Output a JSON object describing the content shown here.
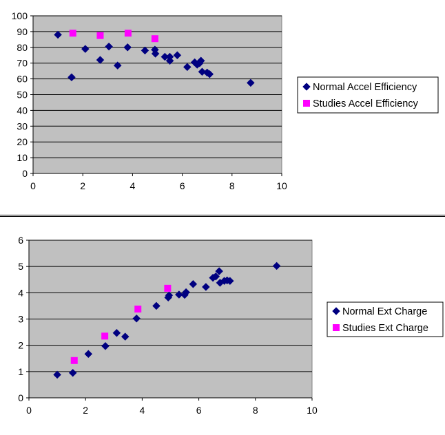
{
  "colors": {
    "plot_background": "#c0c0c0",
    "normal_series": "#000080",
    "studies_series": "#ff00ff",
    "gridline": "#000000"
  },
  "chart_data": [
    {
      "type": "scatter",
      "xlim": [
        0,
        10
      ],
      "ylim": [
        0,
        100
      ],
      "x_ticks": [
        0,
        2,
        4,
        6,
        8,
        10
      ],
      "y_ticks": [
        0,
        10,
        20,
        30,
        40,
        50,
        60,
        70,
        80,
        90,
        100
      ],
      "grid": "horizontal",
      "legend_position": "right",
      "series": [
        {
          "name": "Normal Accel Efficiency",
          "marker": "diamond",
          "color": "#000080",
          "points": [
            [
              1.0,
              88
            ],
            [
              1.55,
              61
            ],
            [
              2.1,
              79
            ],
            [
              2.7,
              72
            ],
            [
              3.05,
              80.5
            ],
            [
              3.4,
              68.5
            ],
            [
              3.8,
              80
            ],
            [
              4.5,
              78
            ],
            [
              4.9,
              78.5
            ],
            [
              4.92,
              76
            ],
            [
              5.3,
              74
            ],
            [
              5.5,
              74
            ],
            [
              5.5,
              71.5
            ],
            [
              5.8,
              75
            ],
            [
              6.2,
              67.5
            ],
            [
              6.5,
              70.5
            ],
            [
              6.6,
              69
            ],
            [
              6.7,
              70
            ],
            [
              6.75,
              71.5
            ],
            [
              6.8,
              64.5
            ],
            [
              7.0,
              64
            ],
            [
              7.1,
              63
            ],
            [
              8.75,
              57.5
            ]
          ]
        },
        {
          "name": "Studies Accel Efficiency",
          "marker": "square",
          "color": "#ff00ff",
          "points": [
            [
              1.6,
              89
            ],
            [
              2.7,
              87.5
            ],
            [
              3.82,
              89
            ],
            [
              4.9,
              85.5
            ]
          ]
        }
      ]
    },
    {
      "type": "scatter",
      "xlim": [
        0,
        10
      ],
      "ylim": [
        0,
        6
      ],
      "x_ticks": [
        0,
        2,
        4,
        6,
        8,
        10
      ],
      "y_ticks": [
        0,
        1,
        2,
        3,
        4,
        5,
        6
      ],
      "grid": "horizontal",
      "legend_position": "right",
      "series": [
        {
          "name": "Normal Ext Charge",
          "marker": "diamond",
          "color": "#000080",
          "points": [
            [
              1.0,
              0.88
            ],
            [
              1.55,
              0.95
            ],
            [
              2.1,
              1.67
            ],
            [
              2.7,
              1.97
            ],
            [
              3.1,
              2.47
            ],
            [
              3.4,
              2.33
            ],
            [
              3.8,
              3.02
            ],
            [
              4.5,
              3.5
            ],
            [
              4.92,
              3.82
            ],
            [
              4.95,
              3.9
            ],
            [
              5.3,
              3.93
            ],
            [
              5.5,
              3.92
            ],
            [
              5.55,
              4.02
            ],
            [
              5.8,
              4.33
            ],
            [
              6.25,
              4.22
            ],
            [
              6.5,
              4.57
            ],
            [
              6.6,
              4.62
            ],
            [
              6.72,
              4.82
            ],
            [
              6.75,
              4.38
            ],
            [
              6.9,
              4.45
            ],
            [
              7.0,
              4.47
            ],
            [
              7.1,
              4.45
            ],
            [
              8.75,
              5.02
            ]
          ]
        },
        {
          "name": "Studies Ext Charge",
          "marker": "square",
          "color": "#ff00ff",
          "points": [
            [
              1.6,
              1.42
            ],
            [
              2.68,
              2.35
            ],
            [
              3.85,
              3.38
            ],
            [
              4.9,
              4.17
            ]
          ]
        }
      ]
    }
  ]
}
